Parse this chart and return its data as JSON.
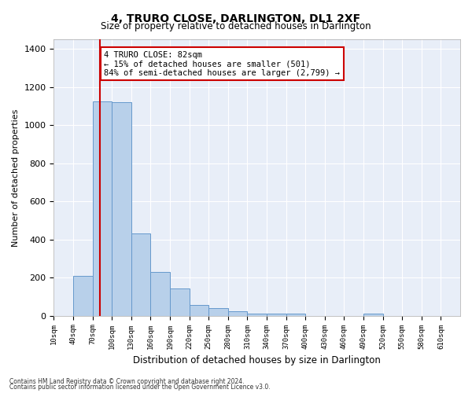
{
  "title": "4, TRURO CLOSE, DARLINGTON, DL1 2XF",
  "subtitle": "Size of property relative to detached houses in Darlington",
  "xlabel": "Distribution of detached houses by size in Darlington",
  "ylabel": "Number of detached properties",
  "footnote1": "Contains HM Land Registry data © Crown copyright and database right 2024.",
  "footnote2": "Contains public sector information licensed under the Open Government Licence v3.0.",
  "annotation_line1": "4 TRURO CLOSE: 82sqm",
  "annotation_line2": "← 15% of detached houses are smaller (501)",
  "annotation_line3": "84% of semi-detached houses are larger (2,799) →",
  "property_size": 82,
  "bar_color": "#b8d0ea",
  "bar_edge_color": "#6699cc",
  "red_line_color": "#cc0000",
  "background_color": "#e8eef8",
  "grid_color": "#ffffff",
  "bin_starts": [
    10,
    40,
    70,
    100,
    130,
    160,
    190,
    220,
    250,
    280,
    310,
    340,
    370,
    400,
    430,
    460,
    490,
    520,
    550,
    580,
    610
  ],
  "bin_width": 30,
  "bar_values": [
    0,
    210,
    1125,
    1120,
    430,
    230,
    145,
    55,
    38,
    25,
    10,
    13,
    13,
    0,
    0,
    0,
    10,
    0,
    0,
    0,
    0
  ],
  "ylim": [
    0,
    1450
  ],
  "yticks": [
    0,
    200,
    400,
    600,
    800,
    1000,
    1200,
    1400
  ],
  "xtick_labels": [
    "10sqm",
    "40sqm",
    "70sqm",
    "100sqm",
    "130sqm",
    "160sqm",
    "190sqm",
    "220sqm",
    "250sqm",
    "280sqm",
    "310sqm",
    "340sqm",
    "370sqm",
    "400sqm",
    "430sqm",
    "460sqm",
    "490sqm",
    "520sqm",
    "550sqm",
    "580sqm",
    "610sqm"
  ]
}
